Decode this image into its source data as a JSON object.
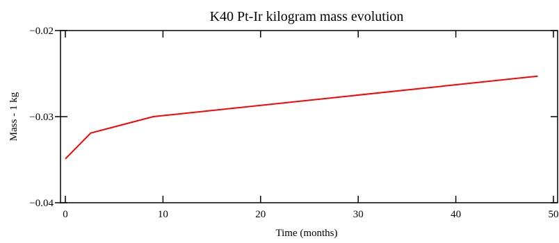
{
  "chart_data": {
    "type": "line",
    "title": "K40 Pt-Ir kilogram mass evolution",
    "xlabel": "Time (months)",
    "ylabel": "Mass - 1 kg",
    "xlim": [
      0,
      50
    ],
    "ylim": [
      -0.04,
      -0.02
    ],
    "x_ticks": [
      0,
      10,
      20,
      30,
      40,
      50
    ],
    "x_tick_labels": [
      "0",
      "10",
      "20",
      "30",
      "40",
      "50"
    ],
    "y_ticks": [
      -0.04,
      -0.03,
      -0.02
    ],
    "y_tick_labels": [
      "−0.04",
      "−0.03",
      "−0.02"
    ],
    "grid": false,
    "series": [
      {
        "color": "#ff0000",
        "x": [
          0,
          2.6,
          9,
          48.4
        ],
        "y": [
          -0.0349,
          -0.0319,
          -0.03,
          -0.0253
        ]
      }
    ]
  }
}
